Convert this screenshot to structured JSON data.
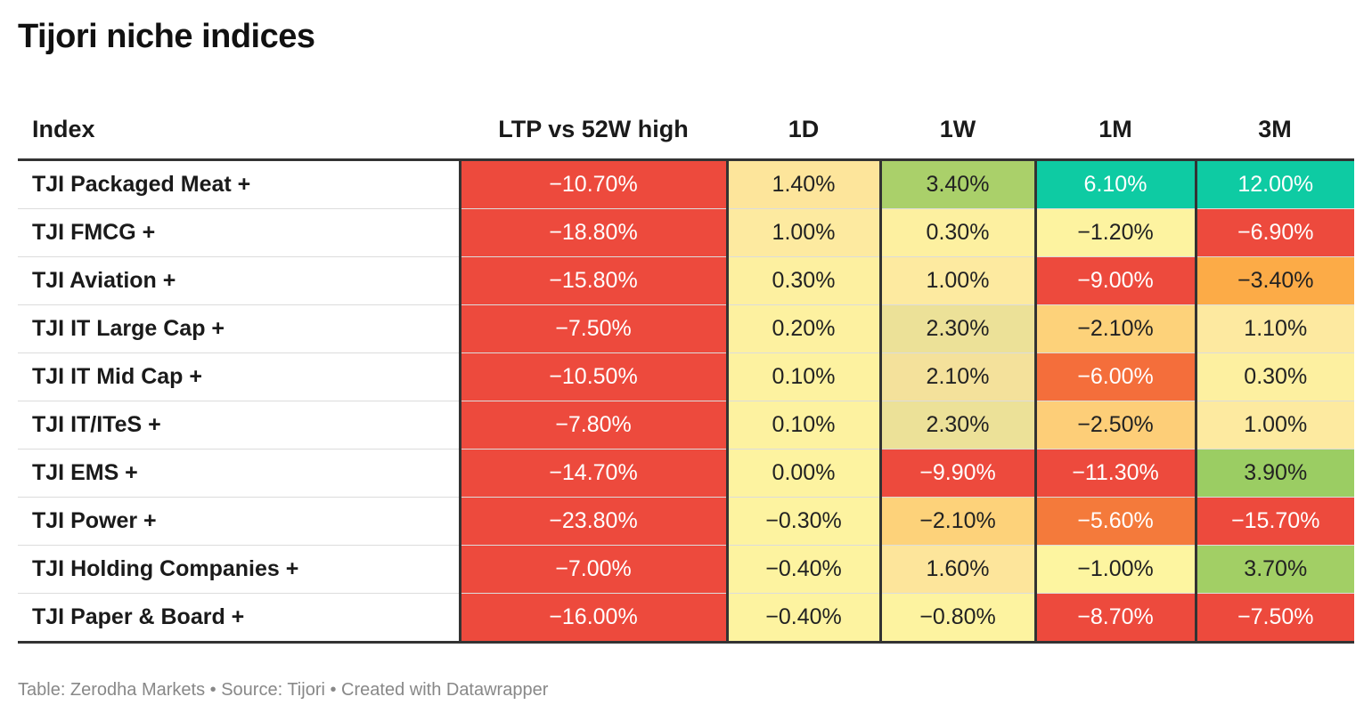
{
  "title": "Tijori niche indices",
  "footer": "Table: Zerodha Markets • Source: Tijori • Created with Datawrapper",
  "colors": {
    "deep_red": "#ed4a3d",
    "orange_red": "#f46e3b",
    "orange": "#fcab47",
    "light_orange": "#fdd27a",
    "pale_yellow": "#fde59b",
    "light_yellow": "#fdf3a0",
    "khaki": "#ece198",
    "light_green": "#a5d06a",
    "green": "#9bcd63",
    "teal": "#0ecba3"
  },
  "chart_data": {
    "type": "table",
    "columns": [
      "Index",
      "LTP vs 52W high",
      "1D",
      "1W",
      "1M",
      "3M"
    ],
    "rows": [
      {
        "name": "TJI Packaged Meat +",
        "values": [
          "−10.70%",
          "1.40%",
          "3.40%",
          "6.10%",
          "12.00%"
        ],
        "colors": [
          "#ed4a3d",
          "#fde59b",
          "#aad06a",
          "#0ecba3",
          "#0ecba3"
        ]
      },
      {
        "name": "TJI FMCG +",
        "values": [
          "−18.80%",
          "1.00%",
          "0.30%",
          "−1.20%",
          "−6.90%"
        ],
        "colors": [
          "#ed4a3d",
          "#fdeaa0",
          "#fdf0a0",
          "#fdf3a0",
          "#ed4a3d"
        ]
      },
      {
        "name": "TJI Aviation +",
        "values": [
          "−15.80%",
          "0.30%",
          "1.00%",
          "−9.00%",
          "−3.40%"
        ],
        "colors": [
          "#ed4a3d",
          "#fdf0a0",
          "#fdeaa0",
          "#ed4a3d",
          "#fcab47"
        ]
      },
      {
        "name": "TJI IT Large Cap +",
        "values": [
          "−7.50%",
          "0.20%",
          "2.30%",
          "−2.10%",
          "1.10%"
        ],
        "colors": [
          "#ed4a3d",
          "#fdf1a0",
          "#ece198",
          "#fdd27a",
          "#fde9a0"
        ]
      },
      {
        "name": "TJI IT Mid Cap +",
        "values": [
          "−10.50%",
          "0.10%",
          "2.10%",
          "−6.00%",
          "0.30%"
        ],
        "colors": [
          "#ed4a3d",
          "#fdf2a0",
          "#f4e19b",
          "#f46e3b",
          "#fdf0a0"
        ]
      },
      {
        "name": "TJI IT/ITeS +",
        "values": [
          "−7.80%",
          "0.10%",
          "2.30%",
          "−2.50%",
          "1.00%"
        ],
        "colors": [
          "#ed4a3d",
          "#fdf2a0",
          "#ece198",
          "#fdce78",
          "#fdeaa0"
        ]
      },
      {
        "name": "TJI EMS +",
        "values": [
          "−14.70%",
          "0.00%",
          "−9.90%",
          "−11.30%",
          "3.90%"
        ],
        "colors": [
          "#ed4a3d",
          "#fdf3a0",
          "#ed4a3d",
          "#ed4a3d",
          "#9bcd63"
        ]
      },
      {
        "name": "TJI Power +",
        "values": [
          "−23.80%",
          "−0.30%",
          "−2.10%",
          "−5.60%",
          "−15.70%"
        ],
        "colors": [
          "#ed4a3d",
          "#fdf3a0",
          "#fdd27a",
          "#f47a3b",
          "#ed4a3d"
        ]
      },
      {
        "name": "TJI Holding Companies +",
        "values": [
          "−7.00%",
          "−0.40%",
          "1.60%",
          "−1.00%",
          "3.70%"
        ],
        "colors": [
          "#ed4a3d",
          "#fdf3a0",
          "#fde59b",
          "#fdf5a0",
          "#a2cf65"
        ]
      },
      {
        "name": "TJI Paper & Board +",
        "values": [
          "−16.00%",
          "−0.40%",
          "−0.80%",
          "−8.70%",
          "−7.50%"
        ],
        "colors": [
          "#ed4a3d",
          "#fdf3a0",
          "#fdf3a0",
          "#ed4a3d",
          "#ed4a3d"
        ]
      }
    ]
  }
}
